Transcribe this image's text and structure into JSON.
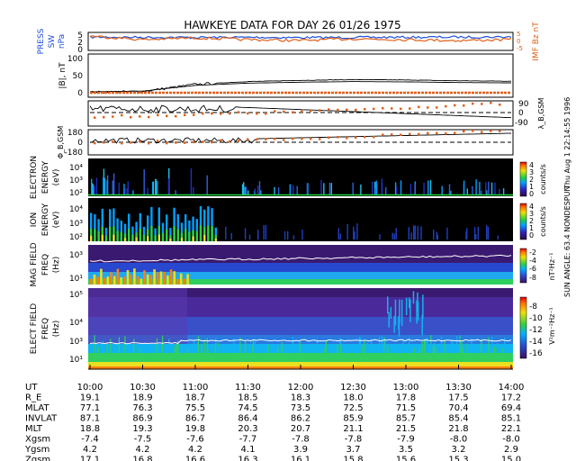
{
  "title": "HAWKEYE DATA FOR DAY  26 01/26 1975",
  "side_label_right": "Thu Aug  1 22:14:55 1996",
  "side_label_right2": "SUN ANGLE:  63.4 NONDESPUN",
  "colors": {
    "press": "#1f4fd8",
    "imf": "#e0601a",
    "trace": "#000000",
    "orange_points": "#e0601a"
  },
  "panels": [
    {
      "key": "press_imf",
      "ylabel": "PRESS",
      "ylabel2": "SW",
      "ylabel3": "nPa",
      "rlabel": "IMF Bz nT",
      "yticks": [
        "5",
        "2",
        "0"
      ],
      "rticks": [
        "5",
        "0",
        "-5"
      ]
    },
    {
      "key": "b",
      "ylabel": "|B|, nT",
      "yticks": [
        "100",
        "50",
        "0"
      ]
    },
    {
      "key": "lambda",
      "rlabel": "λ_B,GSM",
      "rticks": [
        "90",
        "0",
        "-90"
      ]
    },
    {
      "key": "phi",
      "ylabel": "Φ_B,GSM",
      "yticks": [
        "180",
        "0",
        "-180"
      ]
    },
    {
      "key": "electron",
      "ylabel": "ELECTRON",
      "ylabel2": "ENERGY",
      "ylabel3": "(eV)",
      "yticks": [
        "10⁴",
        "10³",
        "10²"
      ],
      "cbar_label": "counts/s",
      "cbar_ticks": [
        "4",
        "3",
        "2",
        "1",
        "0"
      ]
    },
    {
      "key": "ion",
      "ylabel": "ION",
      "ylabel2": "ENERGY",
      "ylabel3": "(eV)",
      "yticks": [
        "10⁴",
        "10³",
        "10²"
      ],
      "cbar_label": "counts/s",
      "cbar_ticks": [
        "4",
        "3",
        "2",
        "1",
        "0"
      ]
    },
    {
      "key": "mag",
      "ylabel": "MAG FIELD",
      "ylabel2": "FREQ",
      "ylabel3": "(Hz)",
      "yticks": [
        "10³",
        "10¹"
      ],
      "cbar_label": "nT²Hz⁻¹",
      "cbar_ticks": [
        "-2",
        "-4",
        "-6",
        "-8"
      ]
    },
    {
      "key": "efield",
      "ylabel": "ELECT FIELD",
      "ylabel2": "FREQ",
      "ylabel3": "(Hz)",
      "yticks": [
        "10⁵",
        "10⁴",
        "10³",
        "10¹"
      ],
      "cbar_label": "V²m⁻²Hz⁻¹",
      "cbar_ticks": [
        "-8",
        "-10",
        "-12",
        "-14",
        "-16"
      ]
    }
  ],
  "chart_data": {
    "type": "heatmap",
    "title": "HAWKEYE DATA FOR DAY  26 01/26 1975",
    "x": [
      "10:00",
      "10:30",
      "11:00",
      "11:30",
      "12:00",
      "12:30",
      "13:00",
      "13:30",
      "14:00"
    ],
    "ephemeris": [
      {
        "name": "UT",
        "values": [
          "10:00",
          "10:30",
          "11:00",
          "11:30",
          "12:00",
          "12:30",
          "13:00",
          "13:30",
          "14:00"
        ]
      },
      {
        "name": "R_E",
        "values": [
          "19.1",
          "18.9",
          "18.7",
          "18.5",
          "18.3",
          "18.0",
          "17.8",
          "17.5",
          "17.2"
        ]
      },
      {
        "name": "MLAT",
        "values": [
          "77.1",
          "76.3",
          "75.5",
          "74.5",
          "73.5",
          "72.5",
          "71.5",
          "70.4",
          "69.4"
        ]
      },
      {
        "name": "INVLAT",
        "values": [
          "87.1",
          "86.9",
          "86.7",
          "86.4",
          "86.2",
          "85.9",
          "85.7",
          "85.4",
          "85.1"
        ]
      },
      {
        "name": "MLT",
        "values": [
          "18.8",
          "19.3",
          "19.8",
          "20.3",
          "20.7",
          "21.1",
          "21.5",
          "21.8",
          "22.1"
        ]
      },
      {
        "name": "Xgsm",
        "values": [
          "-7.4",
          "-7.5",
          "-7.6",
          "-7.7",
          "-7.8",
          "-7.8",
          "-7.9",
          "-8.0",
          "-8.0"
        ]
      },
      {
        "name": "Ygsm",
        "values": [
          "4.2",
          "4.2",
          "4.2",
          "4.1",
          "3.9",
          "3.7",
          "3.5",
          "3.2",
          "2.9"
        ]
      },
      {
        "name": "Zgsm",
        "values": [
          "17.1",
          "16.8",
          "16.6",
          "16.3",
          "16.1",
          "15.8",
          "15.6",
          "15.3",
          "15.0"
        ]
      }
    ],
    "series": [
      {
        "name": "PRESS SW nPa",
        "values": [
          2.4,
          2.3,
          2.2,
          2.3,
          2.1,
          2.2,
          2.3,
          2.4,
          2.5
        ]
      },
      {
        "name": "IMF Bz nT",
        "values": [
          3.0,
          1.0,
          2.0,
          1.0,
          0.5,
          1.5,
          1.0,
          0.5,
          1.0
        ]
      },
      {
        "name": "|B|, nT",
        "values": [
          8,
          10,
          28,
          35,
          38,
          40,
          39,
          37,
          36
        ]
      }
    ]
  }
}
